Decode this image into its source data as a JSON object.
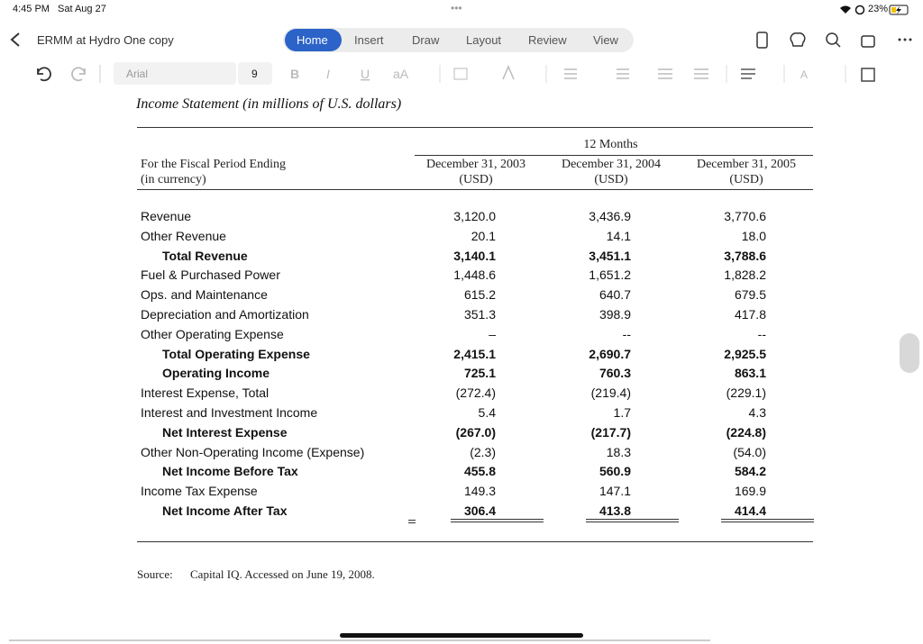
{
  "status": {
    "time": "4:45 PM",
    "date": "Sat Aug 27",
    "battery": "23%"
  },
  "toolbar": {
    "document_title": "ERMM at Hydro One copy",
    "tabs": [
      "Home",
      "Insert",
      "Draw",
      "Layout",
      "Review",
      "View"
    ],
    "font": "Arial",
    "font_size": "9"
  },
  "document": {
    "heading": "Income Statement (in millions of U.S. dollars)",
    "group_header": "12 Months",
    "row_header": [
      "For the Fiscal Period Ending",
      "(in currency)"
    ],
    "columns": [
      [
        "December 31, 2003",
        "(USD)"
      ],
      [
        "December 31, 2004",
        "(USD)"
      ],
      [
        "December 31, 2005",
        "(USD)"
      ]
    ],
    "rows": [
      {
        "label": "Revenue",
        "values": [
          "3,120.0",
          "3,436.9",
          "3,770.6"
        ],
        "bold": false
      },
      {
        "label": "Other Revenue",
        "values": [
          "20.1",
          "14.1",
          "18.0"
        ],
        "bold": false
      },
      {
        "label": "Total Revenue",
        "values": [
          "3,140.1",
          "3,451.1",
          "3,788.6"
        ],
        "bold": true
      },
      {
        "label": "Fuel & Purchased Power",
        "values": [
          "1,448.6",
          "1,651.2",
          "1,828.2"
        ],
        "bold": false
      },
      {
        "label": "Ops. and Maintenance",
        "values": [
          "615.2",
          "640.7",
          "679.5"
        ],
        "bold": false
      },
      {
        "label": "Depreciation and Amortization",
        "values": [
          "351.3",
          "398.9",
          "417.8"
        ],
        "bold": false
      },
      {
        "label": "Other Operating Expense",
        "values": [
          "–",
          "--",
          "--"
        ],
        "bold": false
      },
      {
        "label": "Total Operating Expense",
        "values": [
          "2,415.1",
          "2,690.7",
          "2,925.5"
        ],
        "bold": true
      },
      {
        "label": "Operating Income",
        "values": [
          "725.1",
          "760.3",
          "863.1"
        ],
        "bold": true
      },
      {
        "label": "Interest Expense, Total",
        "values": [
          "(272.4)",
          "(219.4)",
          "(229.1)"
        ],
        "bold": false
      },
      {
        "label": "Interest and Investment Income",
        "values": [
          "5.4",
          "1.7",
          "4.3"
        ],
        "bold": false
      },
      {
        "label": "Net Interest Expense",
        "values": [
          "(267.0)",
          "(217.7)",
          "(224.8)"
        ],
        "bold": true
      },
      {
        "label": "Other Non-Operating Income (Expense)",
        "values": [
          "(2.3)",
          "18.3",
          "(54.0)"
        ],
        "bold": false
      },
      {
        "label": "Net Income Before Tax",
        "values": [
          "455.8",
          "560.9",
          "584.2"
        ],
        "bold": true
      },
      {
        "label": "Income Tax Expense",
        "values": [
          "149.3",
          "147.1",
          "169.9"
        ],
        "bold": false
      },
      {
        "label": "Net Income After Tax",
        "values": [
          "306.4",
          "413.8",
          "414.4"
        ],
        "bold": true
      }
    ],
    "source_label": "Source:",
    "source_text": "Capital IQ. Accessed on June 19, 2008."
  }
}
